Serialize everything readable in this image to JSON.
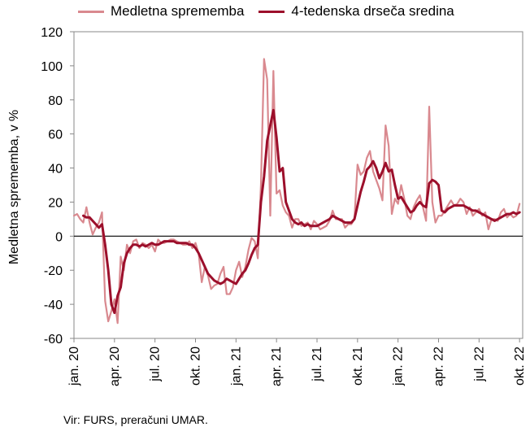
{
  "colors": {
    "raw": "#d9898f",
    "ma": "#9c0f2b",
    "zero": "#000000",
    "frame": "#888888"
  },
  "legend": {
    "raw_label": "Medletna sprememba",
    "ma_label": "4-tedenska drseča sredina"
  },
  "source": "Vir: FURS, preračuni UMAR.",
  "chart_data": {
    "type": "line",
    "ylabel": "Medletna sprememba, v %",
    "xlabel": "",
    "ylim": [
      -60,
      120
    ],
    "yticks": [
      -60,
      -40,
      -20,
      0,
      20,
      40,
      60,
      80,
      100,
      120
    ],
    "x_unit": "week",
    "x_ticks": [
      {
        "label": "jan. 20",
        "week": 0
      },
      {
        "label": "apr. 20",
        "week": 13
      },
      {
        "label": "jul. 20",
        "week": 26
      },
      {
        "label": "okt. 20",
        "week": 39
      },
      {
        "label": "jan. 21",
        "week": 52
      },
      {
        "label": "apr. 21",
        "week": 65
      },
      {
        "label": "jul. 21",
        "week": 78
      },
      {
        "label": "okt. 21",
        "week": 91
      },
      {
        "label": "jan. 22",
        "week": 104
      },
      {
        "label": "apr. 22",
        "week": 117
      },
      {
        "label": "jul. 22",
        "week": 130
      },
      {
        "label": "okt. 22",
        "week": 143
      }
    ],
    "series": [
      {
        "name": "Medletna sprememba",
        "style": "thin",
        "values": [
          [
            0,
            12
          ],
          [
            1,
            13
          ],
          [
            2,
            10
          ],
          [
            3,
            8
          ],
          [
            4,
            17
          ],
          [
            5,
            8
          ],
          [
            6,
            1
          ],
          [
            7,
            5
          ],
          [
            8,
            8
          ],
          [
            9,
            14
          ],
          [
            10,
            -38
          ],
          [
            11,
            -50
          ],
          [
            12,
            -44
          ],
          [
            13,
            -37
          ],
          [
            14,
            -51
          ],
          [
            15,
            -12
          ],
          [
            16,
            -20
          ],
          [
            17,
            -5
          ],
          [
            18,
            -10
          ],
          [
            19,
            -3
          ],
          [
            20,
            -2
          ],
          [
            21,
            -7
          ],
          [
            22,
            -4
          ],
          [
            23,
            -5
          ],
          [
            24,
            -7
          ],
          [
            25,
            -5
          ],
          [
            26,
            -9
          ],
          [
            27,
            -2
          ],
          [
            28,
            -4
          ],
          [
            29,
            -4
          ],
          [
            30,
            -3
          ],
          [
            31,
            -2
          ],
          [
            32,
            -2
          ],
          [
            33,
            -3
          ],
          [
            34,
            -4
          ],
          [
            35,
            -5
          ],
          [
            36,
            -5
          ],
          [
            37,
            -3
          ],
          [
            38,
            -7
          ],
          [
            39,
            -4
          ],
          [
            40,
            -10
          ],
          [
            41,
            -27
          ],
          [
            42,
            -18
          ],
          [
            43,
            -23
          ],
          [
            44,
            -31
          ],
          [
            45,
            -29
          ],
          [
            46,
            -28
          ],
          [
            47,
            -22
          ],
          [
            48,
            -18
          ],
          [
            49,
            -34
          ],
          [
            50,
            -34
          ],
          [
            51,
            -30
          ],
          [
            52,
            -20
          ],
          [
            53,
            -15
          ],
          [
            54,
            -24
          ],
          [
            55,
            -18
          ],
          [
            56,
            -8
          ],
          [
            57,
            -1
          ],
          [
            58,
            -3
          ],
          [
            59,
            -13
          ],
          [
            60,
            30
          ],
          [
            61,
            104
          ],
          [
            62,
            92
          ],
          [
            63,
            12
          ],
          [
            64,
            97
          ],
          [
            65,
            25
          ],
          [
            66,
            27
          ],
          [
            67,
            18
          ],
          [
            68,
            14
          ],
          [
            69,
            12
          ],
          [
            70,
            5
          ],
          [
            71,
            10
          ],
          [
            72,
            10
          ],
          [
            73,
            6
          ],
          [
            74,
            7
          ],
          [
            75,
            8
          ],
          [
            76,
            4
          ],
          [
            77,
            9
          ],
          [
            78,
            7
          ],
          [
            79,
            4
          ],
          [
            80,
            5
          ],
          [
            81,
            6
          ],
          [
            82,
            9
          ],
          [
            83,
            15
          ],
          [
            84,
            10
          ],
          [
            85,
            10
          ],
          [
            86,
            10
          ],
          [
            87,
            5
          ],
          [
            88,
            7
          ],
          [
            89,
            7
          ],
          [
            90,
            10
          ],
          [
            91,
            42
          ],
          [
            92,
            36
          ],
          [
            93,
            38
          ],
          [
            94,
            46
          ],
          [
            95,
            50
          ],
          [
            96,
            38
          ],
          [
            97,
            33
          ],
          [
            98,
            28
          ],
          [
            99,
            21
          ],
          [
            100,
            65
          ],
          [
            101,
            53
          ],
          [
            102,
            13
          ],
          [
            103,
            22
          ],
          [
            104,
            19
          ],
          [
            105,
            30
          ],
          [
            106,
            22
          ],
          [
            107,
            12
          ],
          [
            108,
            10
          ],
          [
            109,
            17
          ],
          [
            110,
            21
          ],
          [
            111,
            24
          ],
          [
            112,
            17
          ],
          [
            113,
            9
          ],
          [
            114,
            76
          ],
          [
            115,
            20
          ],
          [
            116,
            8
          ],
          [
            117,
            12
          ],
          [
            118,
            12
          ],
          [
            119,
            15
          ],
          [
            120,
            18
          ],
          [
            121,
            21
          ],
          [
            122,
            18
          ],
          [
            123,
            19
          ],
          [
            124,
            22
          ],
          [
            125,
            20
          ],
          [
            126,
            13
          ],
          [
            127,
            17
          ],
          [
            128,
            12
          ],
          [
            129,
            14
          ],
          [
            130,
            16
          ],
          [
            131,
            12
          ],
          [
            132,
            14
          ],
          [
            133,
            4
          ],
          [
            134,
            10
          ],
          [
            135,
            10
          ],
          [
            136,
            9
          ],
          [
            137,
            14
          ],
          [
            138,
            16
          ],
          [
            139,
            11
          ],
          [
            140,
            13
          ],
          [
            141,
            11
          ],
          [
            142,
            12
          ],
          [
            143,
            19
          ]
        ]
      },
      {
        "name": "4-tedenska drseča sredina",
        "style": "thick",
        "values": [
          [
            3,
            12
          ],
          [
            4,
            11
          ],
          [
            5,
            11
          ],
          [
            6,
            9
          ],
          [
            7,
            7
          ],
          [
            8,
            5
          ],
          [
            9,
            7
          ],
          [
            10,
            -5
          ],
          [
            11,
            -20
          ],
          [
            12,
            -40
          ],
          [
            13,
            -45
          ],
          [
            14,
            -35
          ],
          [
            15,
            -30
          ],
          [
            16,
            -16
          ],
          [
            17,
            -10
          ],
          [
            18,
            -7
          ],
          [
            19,
            -5
          ],
          [
            20,
            -5
          ],
          [
            21,
            -6
          ],
          [
            22,
            -5
          ],
          [
            23,
            -6
          ],
          [
            24,
            -5
          ],
          [
            25,
            -4
          ],
          [
            26,
            -5
          ],
          [
            27,
            -5
          ],
          [
            28,
            -4
          ],
          [
            29,
            -3
          ],
          [
            30,
            -3
          ],
          [
            31,
            -3
          ],
          [
            32,
            -3
          ],
          [
            33,
            -4
          ],
          [
            34,
            -4
          ],
          [
            35,
            -4
          ],
          [
            36,
            -4
          ],
          [
            37,
            -5
          ],
          [
            38,
            -5
          ],
          [
            39,
            -7
          ],
          [
            40,
            -10
          ],
          [
            41,
            -14
          ],
          [
            42,
            -18
          ],
          [
            43,
            -22
          ],
          [
            44,
            -24
          ],
          [
            45,
            -26
          ],
          [
            46,
            -27
          ],
          [
            47,
            -28
          ],
          [
            48,
            -27
          ],
          [
            49,
            -25
          ],
          [
            50,
            -26
          ],
          [
            51,
            -27
          ],
          [
            52,
            -28
          ],
          [
            53,
            -25
          ],
          [
            54,
            -22
          ],
          [
            55,
            -20
          ],
          [
            56,
            -16
          ],
          [
            57,
            -11
          ],
          [
            58,
            -7
          ],
          [
            59,
            -5
          ],
          [
            60,
            20
          ],
          [
            61,
            35
          ],
          [
            62,
            56
          ],
          [
            63,
            65
          ],
          [
            64,
            74
          ],
          [
            65,
            58
          ],
          [
            66,
            38
          ],
          [
            67,
            40
          ],
          [
            68,
            20
          ],
          [
            69,
            15
          ],
          [
            70,
            10
          ],
          [
            71,
            8
          ],
          [
            72,
            7
          ],
          [
            73,
            8
          ],
          [
            74,
            6
          ],
          [
            75,
            7
          ],
          [
            76,
            6
          ],
          [
            77,
            6
          ],
          [
            78,
            6
          ],
          [
            79,
            7
          ],
          [
            80,
            8
          ],
          [
            81,
            9
          ],
          [
            82,
            10
          ],
          [
            83,
            12
          ],
          [
            84,
            11
          ],
          [
            85,
            10
          ],
          [
            86,
            9
          ],
          [
            87,
            8
          ],
          [
            88,
            8
          ],
          [
            89,
            8
          ],
          [
            90,
            10
          ],
          [
            91,
            18
          ],
          [
            92,
            26
          ],
          [
            93,
            32
          ],
          [
            94,
            39
          ],
          [
            95,
            41
          ],
          [
            96,
            44
          ],
          [
            97,
            40
          ],
          [
            98,
            34
          ],
          [
            99,
            38
          ],
          [
            100,
            43
          ],
          [
            101,
            38
          ],
          [
            102,
            39
          ],
          [
            103,
            30
          ],
          [
            104,
            22
          ],
          [
            105,
            23
          ],
          [
            106,
            20
          ],
          [
            107,
            17
          ],
          [
            108,
            14
          ],
          [
            109,
            15
          ],
          [
            110,
            18
          ],
          [
            111,
            20
          ],
          [
            112,
            18
          ],
          [
            113,
            17
          ],
          [
            114,
            31
          ],
          [
            115,
            33
          ],
          [
            116,
            32
          ],
          [
            117,
            30
          ],
          [
            118,
            15
          ],
          [
            119,
            14
          ],
          [
            120,
            16
          ],
          [
            121,
            17
          ],
          [
            122,
            18
          ],
          [
            123,
            18
          ],
          [
            124,
            18
          ],
          [
            125,
            18
          ],
          [
            126,
            17
          ],
          [
            127,
            16
          ],
          [
            128,
            15
          ],
          [
            129,
            15
          ],
          [
            130,
            14
          ],
          [
            131,
            13
          ],
          [
            132,
            12
          ],
          [
            133,
            11
          ],
          [
            134,
            10
          ],
          [
            135,
            9
          ],
          [
            136,
            10
          ],
          [
            137,
            11
          ],
          [
            138,
            12
          ],
          [
            139,
            13
          ],
          [
            140,
            13
          ],
          [
            141,
            14
          ],
          [
            142,
            13
          ],
          [
            143,
            14
          ]
        ]
      }
    ]
  }
}
